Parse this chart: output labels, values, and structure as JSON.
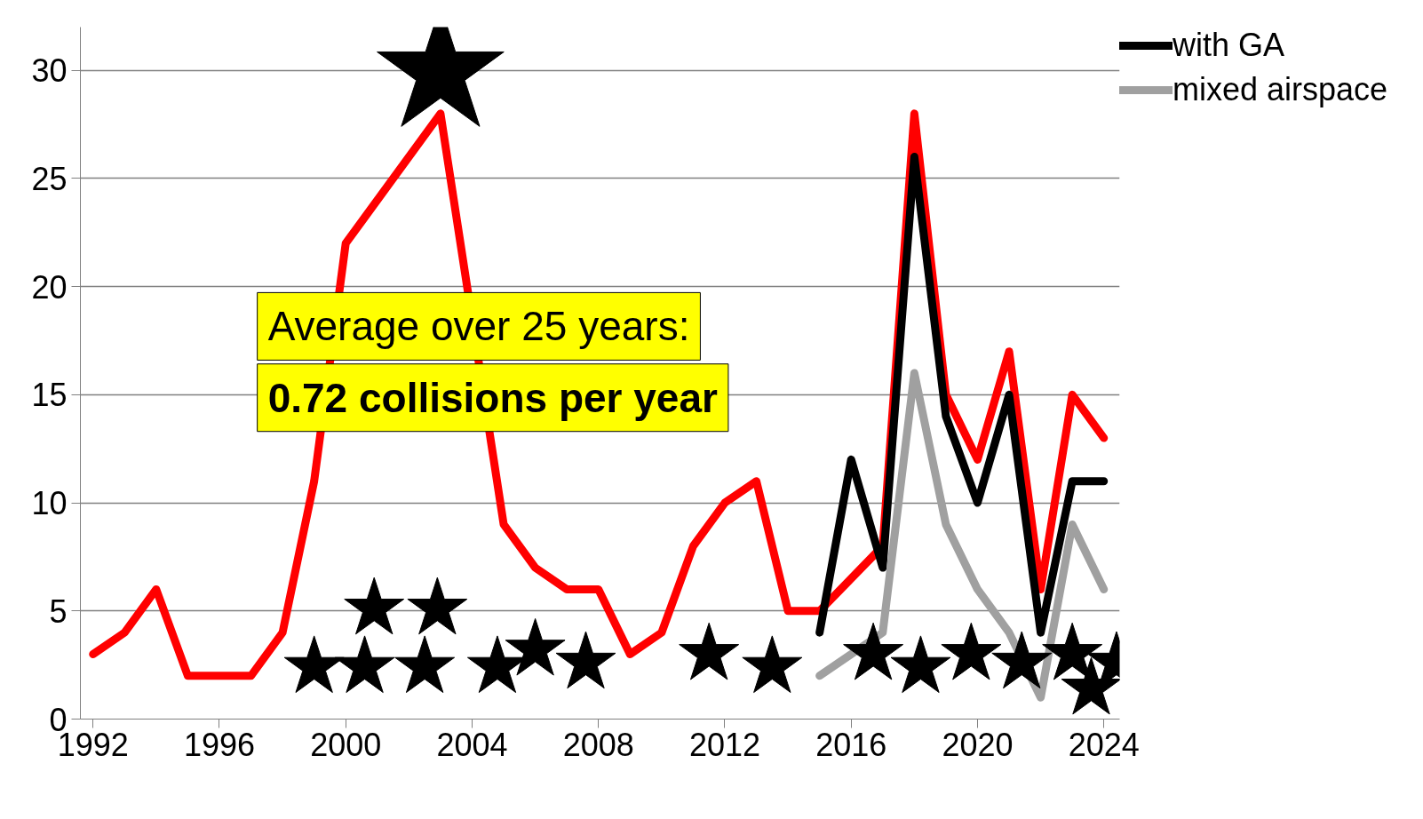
{
  "chart_data": {
    "type": "line",
    "x": [
      1992,
      1993,
      1994,
      1995,
      1996,
      1997,
      1998,
      1999,
      2000,
      2001,
      2002,
      2003,
      2004,
      2005,
      2006,
      2007,
      2008,
      2009,
      2010,
      2011,
      2012,
      2013,
      2014,
      2015,
      2016,
      2017,
      2018,
      2019,
      2020,
      2021,
      2022,
      2023,
      2024
    ],
    "series": [
      {
        "color": "#ff0000",
        "values": [
          3,
          4,
          6,
          2,
          2,
          2,
          4,
          11,
          22,
          null,
          null,
          28,
          null,
          9,
          7,
          6,
          6,
          3,
          4,
          8,
          10,
          11,
          5,
          5,
          null,
          8,
          28,
          15,
          12,
          17,
          6,
          15,
          13
        ]
      },
      {
        "name": "with GA",
        "color": "#000000",
        "x": [
          2015,
          2016,
          2017,
          2018,
          2019,
          2020,
          2021,
          2022,
          2023,
          2024
        ],
        "values": [
          4,
          12,
          7,
          26,
          14,
          10,
          15,
          4,
          11,
          11
        ]
      },
      {
        "name": "mixed airspace",
        "color": "#a0a0a0",
        "x": [
          2015,
          2016,
          2017,
          2018,
          2019,
          2020,
          2021,
          2022,
          2023,
          2024
        ],
        "values": [
          2,
          3,
          4,
          16,
          9,
          6,
          4,
          1,
          9,
          6
        ]
      },
      {
        "type": "bubble",
        "marker": "star",
        "color": "#000000",
        "x": [
          1999,
          2000.6,
          2002.5,
          2004.8,
          2006,
          2007.6,
          2011.5,
          2013.5,
          2016.7,
          2018.2,
          2019.8,
          2021.4,
          2023,
          2024.4,
          2023.6,
          2000.9,
          2002.9,
          2003
        ],
        "values": [
          2.4,
          2.4,
          2.4,
          2.4,
          3.2,
          2.6,
          3,
          2.4,
          3,
          2.4,
          3,
          2.6,
          3,
          2.6,
          1.4,
          5.1,
          5.1,
          29.9
        ],
        "sizes": [
          0.22,
          0.22,
          0.22,
          0.22,
          0.22,
          0.22,
          0.22,
          0.22,
          0.22,
          0.22,
          0.22,
          0.22,
          0.22,
          0.22,
          0.22,
          0.22,
          0.22,
          1
        ]
      }
    ],
    "xlim": [
      1991.6,
      2024.5
    ],
    "xticks": [
      1992,
      1996,
      2000,
      2004,
      2008,
      2012,
      2016,
      2020,
      2024
    ],
    "ylim": [
      0,
      32
    ],
    "yticks": [
      0,
      5,
      10,
      15,
      20,
      25,
      30
    ],
    "grid": "y",
    "legend": "right",
    "line_style": "solid",
    "annotations": [
      "Average over 25 years:",
      "0.72 collisions per year"
    ]
  }
}
